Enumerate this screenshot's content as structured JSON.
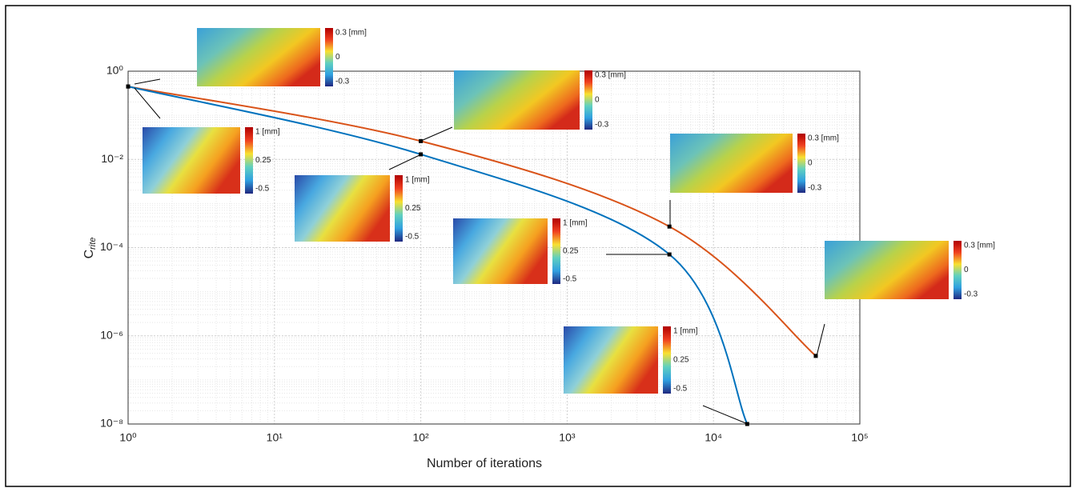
{
  "chart_data": {
    "type": "line",
    "xlabel": "Number of iterations",
    "ylabel": {
      "main": "C",
      "sub": "rite"
    },
    "xscale": "log",
    "yscale": "log",
    "grid": true,
    "xlim": [
      1,
      100000
    ],
    "xticks": [
      {
        "value": 1,
        "label": "10⁰"
      },
      {
        "value": 10,
        "label": "10¹"
      },
      {
        "value": 100,
        "label": "10²"
      },
      {
        "value": 1000,
        "label": "10³"
      },
      {
        "value": 10000,
        "label": "10⁴"
      },
      {
        "value": 100000,
        "label": "10⁵"
      }
    ],
    "ylim": [
      1e-08,
      1
    ],
    "yticks": [
      {
        "value": 1e-08,
        "label": "10⁻⁸"
      },
      {
        "value": 1e-06,
        "label": "10⁻⁶"
      },
      {
        "value": 0.0001,
        "label": "10⁻⁴"
      },
      {
        "value": 0.01,
        "label": "10⁻²"
      },
      {
        "value": 1,
        "label": "10⁰"
      }
    ],
    "series": [
      {
        "color": "#d95319",
        "x": [
          1,
          100,
          5000,
          50000
        ],
        "values": [
          0.45,
          0.026,
          0.0003,
          3.5e-07
        ]
      },
      {
        "color": "#0072bd",
        "x": [
          1,
          100,
          5000,
          17000
        ],
        "values": [
          0.45,
          0.013,
          7e-05,
          1e-08
        ]
      }
    ],
    "insets": [
      {
        "colorbar_labels": [
          "0.3 [mm]",
          "0",
          "-0.3"
        ]
      },
      {
        "colorbar_labels": [
          "0.3 [mm]",
          "0",
          "-0.3"
        ]
      },
      {
        "colorbar_labels": [
          "1 [mm]",
          "0.25",
          "-0.5"
        ]
      },
      {
        "colorbar_labels": [
          "1 [mm]",
          "0.25",
          "-0.5"
        ]
      },
      {
        "colorbar_labels": [
          "0.3 [mm]",
          "0",
          "-0.3"
        ]
      },
      {
        "colorbar_labels": [
          "1 [mm]",
          "0.25",
          "-0.5"
        ]
      },
      {
        "colorbar_labels": [
          "0.3 [mm]",
          "0",
          "-0.3"
        ]
      },
      {
        "colorbar_labels": [
          "1 [mm]",
          "0.25",
          "-0.5"
        ]
      }
    ]
  }
}
